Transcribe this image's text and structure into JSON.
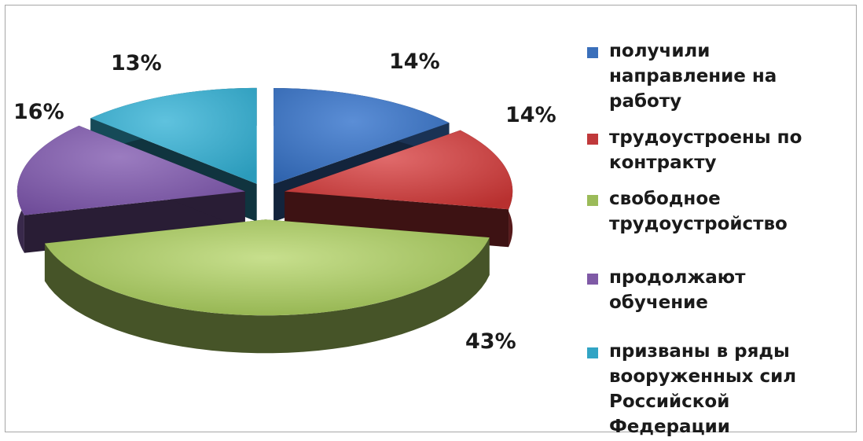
{
  "chart_data": {
    "type": "pie",
    "title": "",
    "slices": [
      {
        "label": "получили направление на работу",
        "value": 14,
        "value_label": "14%",
        "color": "#3a6fba"
      },
      {
        "label": "трудоустроены по контракту",
        "value": 14,
        "value_label": "14%",
        "color": "#c0393b"
      },
      {
        "label": "свободное трудоустройство",
        "value": 43,
        "value_label": "43%",
        "color": "#9bbb59"
      },
      {
        "label": "продолжают обучение",
        "value": 16,
        "value_label": "16%",
        "color": "#7f5aa6"
      },
      {
        "label": "призваны в ряды вооруженных сил Российской Федерации",
        "value": 13,
        "value_label": "13%",
        "color": "#31a4c4"
      }
    ],
    "legend_position": "right",
    "style": "3d-exploded"
  }
}
